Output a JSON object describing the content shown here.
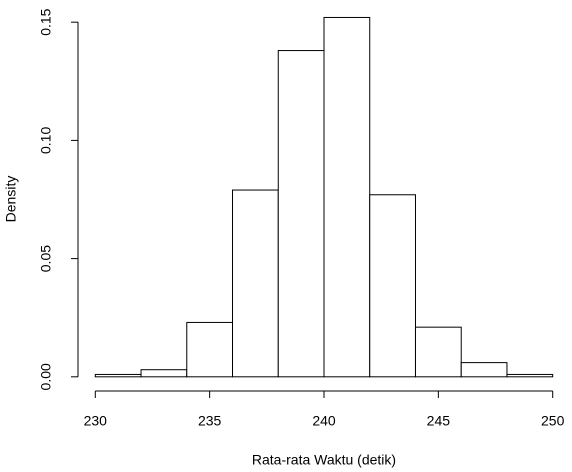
{
  "chart_data": {
    "type": "histogram",
    "xlabel": "Rata-rata Waktu (detik)",
    "ylabel": "Density",
    "bins": [
      230,
      232,
      234,
      236,
      238,
      240,
      242,
      244,
      246,
      248,
      250
    ],
    "values": [
      0.001,
      0.003,
      0.023,
      0.079,
      0.138,
      0.152,
      0.077,
      0.021,
      0.006,
      0.001
    ],
    "color": "#ffffff",
    "edgecolor": "#000000",
    "xlim": [
      229.2,
      250.8
    ],
    "ylim": [
      -0.006,
      0.156
    ],
    "xticks": [
      230,
      235,
      240,
      245,
      250
    ],
    "yticks": [
      {
        "value": 0,
        "label": "0.00"
      },
      0.05,
      {
        "value": 0.1,
        "label": "0.10"
      },
      0.15
    ]
  }
}
